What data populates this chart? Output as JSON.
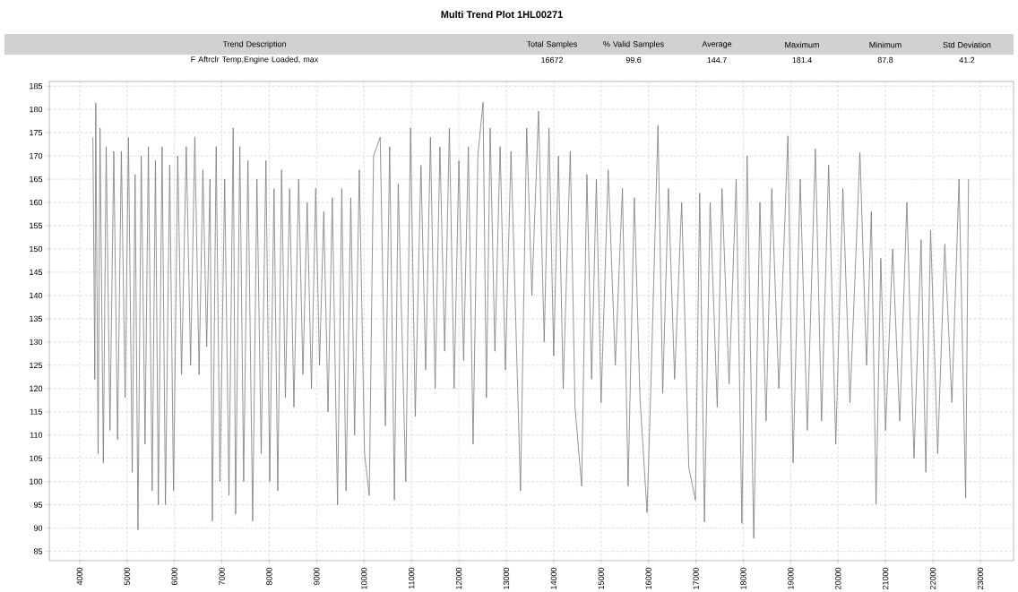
{
  "chart_data": {
    "type": "line",
    "title": "Multi Trend Plot 1HL00271",
    "annotations": [
      "Trend Description",
      "Total Samples",
      "% Valid Samples",
      "Average",
      "Maximum",
      "Minimum",
      "Std Deviation",
      "F Aftrclr Temp,Engine Loaded, max",
      "16672",
      "99.6",
      "144.7",
      "181.4",
      "87.8",
      "41.2"
    ],
    "color": "#7a7a7a",
    "grid": true,
    "xlim": [
      3360,
      23700
    ],
    "ylim": [
      83,
      186
    ],
    "xticks": [
      4000,
      5000,
      6000,
      7000,
      8000,
      9000,
      10000,
      11000,
      12000,
      13000,
      14000,
      15000,
      16000,
      17000,
      18000,
      19000,
      20000,
      21000,
      22000,
      23000
    ],
    "yticks": [
      85,
      90,
      95,
      100,
      105,
      110,
      115,
      120,
      125,
      130,
      135,
      140,
      145,
      150,
      155,
      160,
      165,
      170,
      175,
      180,
      185
    ],
    "x": [
      4280,
      4320,
      4340,
      4390,
      4430,
      4500,
      4560,
      4640,
      4720,
      4800,
      4880,
      4960,
      5030,
      5110,
      5170,
      5230,
      5300,
      5380,
      5450,
      5530,
      5600,
      5660,
      5740,
      5810,
      5900,
      5980,
      6070,
      6150,
      6250,
      6340,
      6430,
      6520,
      6600,
      6680,
      6750,
      6800,
      6880,
      6960,
      7060,
      7150,
      7240,
      7290,
      7380,
      7460,
      7550,
      7650,
      7740,
      7830,
      7930,
      8010,
      8100,
      8180,
      8260,
      8340,
      8430,
      8520,
      8620,
      8710,
      8800,
      8890,
      8980,
      9060,
      9150,
      9240,
      9330,
      9440,
      9530,
      9620,
      9720,
      9800,
      9900,
      10010,
      10110,
      10200,
      10340,
      10450,
      10540,
      10640,
      10720,
      10880,
      10980,
      11080,
      11200,
      11300,
      11400,
      11500,
      11600,
      11700,
      11800,
      11900,
      12000,
      12100,
      12200,
      12300,
      12400,
      12510,
      12580,
      12660,
      12760,
      12870,
      12980,
      13100,
      13300,
      13430,
      13540,
      13680,
      13800,
      13900,
      14000,
      14100,
      14200,
      14350,
      14450,
      14590,
      14700,
      14800,
      14900,
      15000,
      15150,
      15300,
      15450,
      15570,
      15700,
      15820,
      15970,
      16060,
      16200,
      16300,
      16420,
      16550,
      16700,
      16850,
      16990,
      17080,
      17180,
      17300,
      17450,
      17550,
      17700,
      17850,
      17970,
      18080,
      18220,
      18350,
      18480,
      18600,
      18750,
      18940,
      19050,
      19200,
      19350,
      19520,
      19650,
      19800,
      19950,
      20100,
      20250,
      20460,
      20600,
      20700,
      20800,
      20900,
      21000,
      21150,
      21300,
      21450,
      21600,
      21750,
      21850,
      21950,
      22100,
      22250,
      22400,
      22550,
      22690,
      22750
    ],
    "values": [
      174,
      122,
      181.4,
      106,
      176,
      104,
      172,
      111,
      171,
      109,
      171,
      118,
      174,
      102,
      166,
      89.6,
      170,
      108,
      172,
      98,
      169,
      95,
      172,
      95,
      168,
      98,
      170,
      123,
      172,
      125,
      174,
      123,
      167,
      129,
      165,
      91.5,
      172,
      100,
      165,
      97,
      176,
      93,
      172,
      100,
      169,
      91.5,
      165,
      106,
      169,
      100,
      163,
      98,
      167,
      118,
      163,
      116,
      165,
      123,
      160,
      120,
      163,
      125,
      158,
      115,
      161,
      95,
      163,
      98,
      161,
      110,
      167,
      106,
      97,
      170,
      174,
      112,
      172,
      96,
      164,
      100,
      176,
      114,
      168,
      124,
      174,
      120,
      172,
      128,
      176,
      120,
      169,
      126,
      172,
      108,
      170,
      181.5,
      118,
      176,
      128,
      172,
      124,
      171,
      98,
      176,
      140,
      179.6,
      130,
      176,
      127,
      170,
      120,
      171,
      116,
      99,
      166,
      122,
      165,
      117,
      167,
      125,
      163,
      99,
      161,
      118,
      93.3,
      124,
      176.6,
      119,
      163,
      122,
      160,
      103,
      96,
      162,
      91.3,
      160,
      116,
      163,
      121,
      165,
      91,
      170,
      87.8,
      160,
      113,
      163,
      120,
      174.3,
      104,
      165,
      111,
      171.5,
      113,
      168,
      108,
      163,
      117,
      170.7,
      125,
      158,
      95.2,
      148,
      111,
      150,
      113,
      160,
      105,
      152,
      102,
      154,
      106,
      151,
      117,
      165,
      96.5,
      165
    ]
  }
}
